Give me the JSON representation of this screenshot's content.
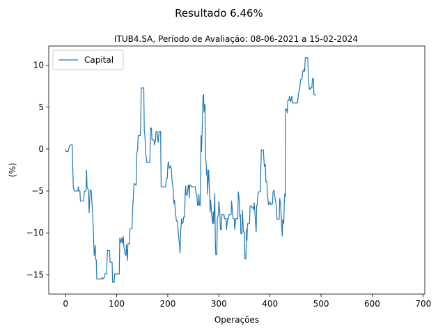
{
  "chart_data": {
    "type": "line",
    "suptitle": "Resultado 6.46%",
    "title": "ITUB4.SA, Período de Avaliação: 08-06-2021 a 15-02-2024",
    "xlabel": "Operações",
    "ylabel": "(%)",
    "xlim": [
      -33,
      703
    ],
    "ylim": [
      -17.3,
      12.3
    ],
    "xticks": [
      0,
      100,
      200,
      300,
      400,
      500,
      600,
      700
    ],
    "yticks": [
      -15,
      -10,
      -5,
      0,
      5,
      10
    ],
    "grid": false,
    "legend_position": "top-left",
    "series": [
      {
        "name": "Capital",
        "color": "#1f77b4",
        "points": [
          [
            0,
            0
          ],
          [
            1,
            -0.3
          ],
          [
            5,
            -0.3
          ],
          [
            6,
            0
          ],
          [
            9,
            0.5
          ],
          [
            13,
            0.5
          ],
          [
            15,
            -4.5
          ],
          [
            17,
            -5
          ],
          [
            24,
            -5
          ],
          [
            25,
            -4.5
          ],
          [
            26,
            -5
          ],
          [
            28,
            -5
          ],
          [
            29,
            -6.2
          ],
          [
            35,
            -6.2
          ],
          [
            37,
            -5
          ],
          [
            40,
            -5
          ],
          [
            41,
            -2.5
          ],
          [
            42,
            -4.5
          ],
          [
            45,
            -5
          ],
          [
            46,
            -7.6
          ],
          [
            48,
            -4.9
          ],
          [
            50,
            -4.9
          ],
          [
            51,
            -5.8
          ],
          [
            53,
            -7.7
          ],
          [
            56,
            -12.7
          ],
          [
            58,
            -11.5
          ],
          [
            59,
            -13.2
          ],
          [
            60,
            -13.2
          ],
          [
            61,
            -15.5
          ],
          [
            70,
            -15.5
          ],
          [
            71,
            -15.3
          ],
          [
            73,
            -15.5
          ],
          [
            76,
            -15.3
          ],
          [
            77,
            -14.9
          ],
          [
            80,
            -14.9
          ],
          [
            82,
            -12.1
          ],
          [
            86,
            -12.1
          ],
          [
            87,
            -13.5
          ],
          [
            91,
            -13.5
          ],
          [
            92,
            -15.9
          ],
          [
            95,
            -15.9
          ],
          [
            96,
            -14.9
          ],
          [
            105,
            -14.9
          ],
          [
            106,
            -10.6
          ],
          [
            108,
            -11.2
          ],
          [
            110,
            -10.6
          ],
          [
            112,
            -11.3
          ],
          [
            113,
            -10.4
          ],
          [
            114,
            -11.6
          ],
          [
            116,
            -12.4
          ],
          [
            118,
            -12.7
          ],
          [
            119,
            -11.4
          ],
          [
            121,
            -13.3
          ],
          [
            122,
            -11.3
          ],
          [
            125,
            -11.3
          ],
          [
            126,
            -9.5
          ],
          [
            130,
            -9.5
          ],
          [
            131,
            -7.5
          ],
          [
            134,
            -4.1
          ],
          [
            138,
            -4.3
          ],
          [
            139,
            -0.7
          ],
          [
            141,
            0
          ],
          [
            142,
            1.6
          ],
          [
            146,
            1.6
          ],
          [
            147,
            2.6
          ],
          [
            148,
            7.3
          ],
          [
            153,
            7.3
          ],
          [
            154,
            2.1
          ],
          [
            155,
            1.8
          ],
          [
            157,
            -0.6
          ],
          [
            159,
            -1.6
          ],
          [
            165,
            -1.6
          ],
          [
            166,
            2.5
          ],
          [
            168,
            2.5
          ],
          [
            169,
            1.1
          ],
          [
            173,
            1.1
          ],
          [
            174,
            0.5
          ],
          [
            176,
            1.1
          ],
          [
            177,
            2.1
          ],
          [
            179,
            2.1
          ],
          [
            181,
            0.8
          ],
          [
            183,
            2.1
          ],
          [
            186,
            2.1
          ],
          [
            187,
            -4.5
          ],
          [
            196,
            -4.5
          ],
          [
            197,
            -3.5
          ],
          [
            199,
            -3.5
          ],
          [
            200,
            -2.1
          ],
          [
            201,
            -1.5
          ],
          [
            203,
            -2.3
          ],
          [
            205,
            -2
          ],
          [
            207,
            -2.3
          ],
          [
            208,
            -3.5
          ],
          [
            210,
            -4.5
          ],
          [
            212,
            -6.5
          ],
          [
            213,
            -6.1
          ],
          [
            214,
            -6.7
          ],
          [
            215,
            -7.6
          ],
          [
            217,
            -8.6
          ],
          [
            219,
            -8.6
          ],
          [
            220,
            -9.6
          ],
          [
            222,
            -10.9
          ],
          [
            223,
            -11.5
          ],
          [
            224,
            -12.4
          ],
          [
            225,
            -10.1
          ],
          [
            227,
            -8.3
          ],
          [
            228,
            -8.9
          ],
          [
            230,
            -8.7
          ],
          [
            231,
            -8.1
          ],
          [
            233,
            -8.1
          ],
          [
            234,
            -5.3
          ],
          [
            235,
            -4.4
          ],
          [
            236,
            -5.5
          ],
          [
            238,
            -5.5
          ],
          [
            240,
            -4.3
          ],
          [
            241,
            -4.3
          ],
          [
            242,
            -5.8
          ],
          [
            243,
            -4.3
          ],
          [
            245,
            -4.3
          ],
          [
            246,
            -4.5
          ],
          [
            254,
            -4.5
          ],
          [
            255,
            -5.3
          ],
          [
            257,
            -5.4
          ],
          [
            258,
            -6.7
          ],
          [
            260,
            -6.7
          ],
          [
            261,
            -5.4
          ],
          [
            262,
            -6.7
          ],
          [
            264,
            -6.7
          ],
          [
            265,
            1.6
          ],
          [
            266,
            -0.3
          ],
          [
            268,
            3.8
          ],
          [
            269,
            6.4
          ],
          [
            270,
            6.5
          ],
          [
            271,
            4.4
          ],
          [
            272,
            5.3
          ],
          [
            273,
            5.3
          ],
          [
            274,
            -1.1
          ],
          [
            275,
            -1.5
          ],
          [
            276,
            -3.1
          ],
          [
            277,
            -2.5
          ],
          [
            278,
            -5.4
          ],
          [
            279,
            -3.7
          ],
          [
            280,
            -2.5
          ],
          [
            282,
            -5.4
          ],
          [
            283,
            -7.5
          ],
          [
            284,
            -6.1
          ],
          [
            286,
            -7.9
          ],
          [
            288,
            -8.9
          ],
          [
            289,
            -7.5
          ],
          [
            290,
            -8.9
          ],
          [
            292,
            -5.3
          ],
          [
            293,
            -10.9
          ],
          [
            294,
            -12.6
          ],
          [
            296,
            -12.6
          ],
          [
            297,
            -8.3
          ],
          [
            299,
            -7.8
          ],
          [
            300,
            -6.2
          ],
          [
            302,
            -7.8
          ],
          [
            303,
            -9.6
          ],
          [
            305,
            -9.6
          ],
          [
            306,
            -7.8
          ],
          [
            310,
            -7.8
          ],
          [
            311,
            -8.3
          ],
          [
            314,
            -8.3
          ],
          [
            315,
            -9.6
          ],
          [
            317,
            -8.3
          ],
          [
            319,
            -8.3
          ],
          [
            320,
            -7.8
          ],
          [
            324,
            -7.8
          ],
          [
            325,
            -6.2
          ],
          [
            327,
            -7.8
          ],
          [
            328,
            -8.3
          ],
          [
            330,
            -8.3
          ],
          [
            331,
            -9.6
          ],
          [
            333,
            -8.3
          ],
          [
            337,
            -8.3
          ],
          [
            338,
            -5.1
          ],
          [
            340,
            -6.2
          ],
          [
            341,
            -8.1
          ],
          [
            342,
            -7.8
          ],
          [
            343,
            -10.1
          ],
          [
            345,
            -10.1
          ],
          [
            346,
            -7.3
          ],
          [
            348,
            -9.9
          ],
          [
            350,
            -9.9
          ],
          [
            351,
            -13.1
          ],
          [
            353,
            -13.1
          ],
          [
            354,
            -9.6
          ],
          [
            355,
            -10.9
          ],
          [
            356,
            -8.9
          ],
          [
            360,
            -8.9
          ],
          [
            361,
            -6.8
          ],
          [
            364,
            -6.8
          ],
          [
            365,
            -7
          ],
          [
            367,
            -7
          ],
          [
            368,
            -7.2
          ],
          [
            369,
            -6.4
          ],
          [
            370,
            -7.2
          ],
          [
            371,
            -8.1
          ],
          [
            373,
            -9.9
          ],
          [
            374,
            -6.7
          ],
          [
            375,
            -6.7
          ],
          [
            376,
            -5.6
          ],
          [
            378,
            -5.1
          ],
          [
            381,
            -5.1
          ],
          [
            382,
            -2.8
          ],
          [
            383,
            -0.1
          ],
          [
            387,
            -0.1
          ],
          [
            388,
            -1.1
          ],
          [
            389,
            -2.1
          ],
          [
            391,
            -1.8
          ],
          [
            392,
            -3.9
          ],
          [
            394,
            -3.9
          ],
          [
            395,
            -5.5
          ],
          [
            396,
            -5.9
          ],
          [
            397,
            -6.6
          ],
          [
            399,
            -6.6
          ],
          [
            400,
            -6.3
          ],
          [
            402,
            -6.6
          ],
          [
            404,
            -6.6
          ],
          [
            405,
            -6.5
          ],
          [
            406,
            -5.1
          ],
          [
            408,
            -4.9
          ],
          [
            410,
            -5.9
          ],
          [
            412,
            -6.6
          ],
          [
            413,
            -7.8
          ],
          [
            414,
            -8.4
          ],
          [
            418,
            -8.4
          ],
          [
            419,
            -5.9
          ],
          [
            421,
            -6.7
          ],
          [
            422,
            -7.9
          ],
          [
            424,
            -10.4
          ],
          [
            425,
            -8.4
          ],
          [
            427,
            -8.9
          ],
          [
            428,
            -6.3
          ],
          [
            429,
            -5.3
          ],
          [
            430,
            -5.7
          ],
          [
            431,
            4.8
          ],
          [
            432,
            4.6
          ],
          [
            433,
            4.8
          ],
          [
            434,
            4.3
          ],
          [
            435,
            5.8
          ],
          [
            437,
            5.8
          ],
          [
            438,
            6.3
          ],
          [
            440,
            5.7
          ],
          [
            441,
            5.7
          ],
          [
            442,
            6.1
          ],
          [
            443,
            6.3
          ],
          [
            444,
            5.5
          ],
          [
            454,
            5.5
          ],
          [
            456,
            6.7
          ],
          [
            458,
            7.1
          ],
          [
            460,
            8.3
          ],
          [
            462,
            8.3
          ],
          [
            463,
            8.5
          ],
          [
            464,
            9.3
          ],
          [
            466,
            9.3
          ],
          [
            467,
            9.6
          ],
          [
            468,
            9.3
          ],
          [
            469,
            10.9
          ],
          [
            474,
            10.9
          ],
          [
            475,
            8.6
          ],
          [
            476,
            7.8
          ],
          [
            477,
            7.3
          ],
          [
            478,
            7.1
          ],
          [
            479,
            7.3
          ],
          [
            482,
            7.3
          ],
          [
            483,
            8.4
          ],
          [
            485,
            8.4
          ],
          [
            486,
            6.5
          ],
          [
            490,
            6.46
          ]
        ]
      }
    ]
  }
}
